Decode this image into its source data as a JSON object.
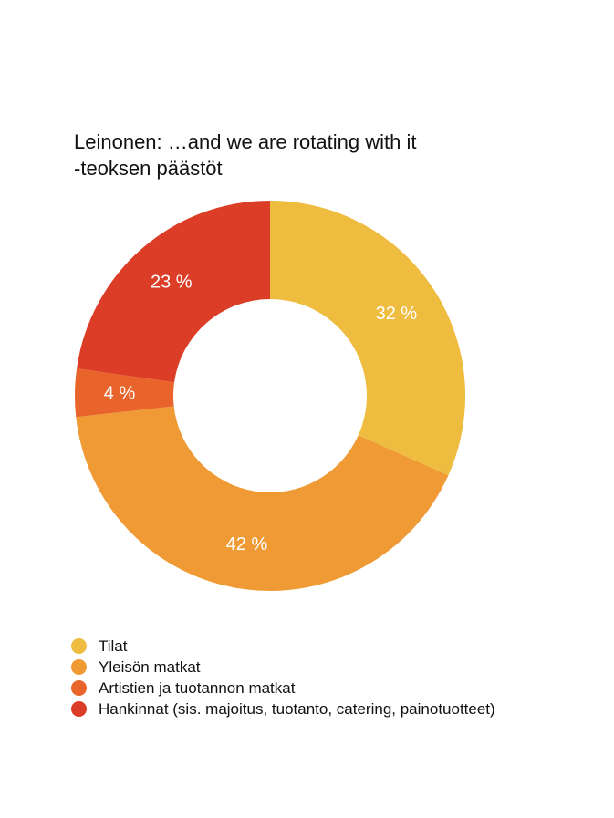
{
  "chart_data": {
    "type": "pie",
    "variant": "donut",
    "title_lines": [
      "Leinonen: …and we are rotating with it",
      "-teoksen päästöt"
    ],
    "unit": "%",
    "slices": [
      {
        "name": "Tilat",
        "value": 32,
        "label": "32 %",
        "color": "#EEBC3F"
      },
      {
        "name": "Yleisön matkat",
        "value": 42,
        "label": "42 %",
        "color": "#EF9A35"
      },
      {
        "name": "Artistien ja tuotannon matkat",
        "value": 4,
        "label": "4 %",
        "color": "#E9642B"
      },
      {
        "name": "Hankinnat (sis. majoitus, tuotanto, catering, painotuotteet)",
        "value": 23,
        "label": "23 %",
        "color": "#DB3D27"
      }
    ],
    "legend_position": "bottom-left",
    "start_angle_deg": 0,
    "direction": "clockwise"
  }
}
